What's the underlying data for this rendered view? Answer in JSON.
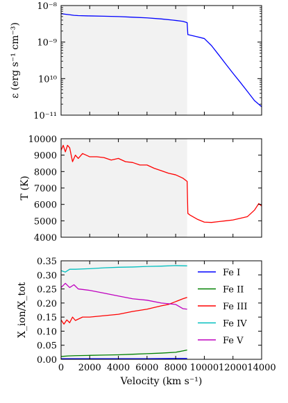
{
  "chart_data": [
    {
      "type": "line",
      "panel": "emissivity",
      "ylabel": "ε (erg s⁻¹ cm⁻³)",
      "yscale": "log",
      "xlim": [
        0,
        14000
      ],
      "ylim": [
        1e-11,
        1e-08
      ],
      "ytick_labels": [
        "10⁻⁸",
        "10⁻⁹",
        "10¹⁰",
        "10⁻¹¹"
      ],
      "shaded_region": [
        0,
        8800
      ],
      "grid": false,
      "color": "#0000ff",
      "series": [
        {
          "x": [
            0,
            300,
            600,
            900,
            1200,
            2000,
            3000,
            4000,
            5000,
            6000,
            7000,
            7800,
            8500,
            8800,
            8850,
            9500,
            10000,
            10500,
            11000,
            11500,
            12000,
            12500,
            13000,
            13500,
            14000
          ],
          "y": [
            6e-09,
            5.8e-09,
            5.6e-09,
            5.4e-09,
            5.3e-09,
            5.2e-09,
            5.1e-09,
            5e-09,
            4.8e-09,
            4.6e-09,
            4.3e-09,
            4e-09,
            3.7e-09,
            3.4e-09,
            1.6e-09,
            1.4e-09,
            1.25e-09,
            8e-10,
            4.5e-10,
            2.5e-10,
            1.4e-10,
            8e-11,
            4.5e-11,
            2.5e-11,
            1.7e-11
          ]
        }
      ]
    },
    {
      "type": "line",
      "panel": "temperature",
      "ylabel": "T (K)",
      "xlim": [
        0,
        14000
      ],
      "ylim": [
        4000,
        10000
      ],
      "yticks": [
        4000,
        5000,
        6000,
        7000,
        8000,
        9000,
        10000
      ],
      "shaded_region": [
        0,
        8800
      ],
      "grid": false,
      "color": "#ff0000",
      "series": [
        {
          "x": [
            0,
            150,
            300,
            450,
            600,
            800,
            1000,
            1200,
            1500,
            2000,
            2500,
            3000,
            3500,
            4000,
            4500,
            5000,
            5500,
            6000,
            6500,
            7000,
            7500,
            8000,
            8500,
            8800,
            8850,
            9000,
            9500,
            10000,
            10500,
            11000,
            11500,
            12000,
            12500,
            13000,
            13500,
            13800,
            14000
          ],
          "y": [
            9300,
            9600,
            9200,
            9600,
            9450,
            8600,
            9000,
            8800,
            9100,
            8900,
            8900,
            8850,
            8700,
            8800,
            8600,
            8550,
            8400,
            8400,
            8200,
            8050,
            7900,
            7800,
            7600,
            7400,
            5450,
            5350,
            5100,
            4920,
            4900,
            4950,
            5000,
            5050,
            5150,
            5250,
            5650,
            6050,
            5900
          ]
        }
      ]
    },
    {
      "type": "line",
      "panel": "ionization",
      "xlabel": "Velocity (km s⁻¹)",
      "ylabel": "X_ion/X_tot",
      "xlim": [
        0,
        14000
      ],
      "xticks": [
        0,
        2000,
        4000,
        6000,
        8000,
        10000,
        12000,
        14000
      ],
      "ylim": [
        0,
        0.35
      ],
      "yticks": [
        0.0,
        0.05,
        0.1,
        0.15,
        0.2,
        0.25,
        0.3,
        0.35
      ],
      "shaded_region": [
        0,
        8800
      ],
      "grid": false,
      "legend": "right",
      "series": [
        {
          "name": "Fe I",
          "color": "#0000ff",
          "x": [
            0,
            1000,
            2000,
            4000,
            6000,
            8000,
            8800
          ],
          "y": [
            0.002,
            0.002,
            0.002,
            0.002,
            0.002,
            0.003,
            0.003
          ]
        },
        {
          "name": "Fe II",
          "color": "#008000",
          "x": [
            0,
            500,
            1000,
            2000,
            3000,
            4000,
            5000,
            6000,
            7000,
            8000,
            8500,
            8800
          ],
          "y": [
            0.01,
            0.012,
            0.013,
            0.014,
            0.015,
            0.016,
            0.018,
            0.02,
            0.022,
            0.025,
            0.03,
            0.033
          ]
        },
        {
          "name": "Fe III",
          "color": "#ff0000",
          "x": [
            0,
            200,
            400,
            600,
            800,
            1000,
            1500,
            2000,
            3000,
            4000,
            5000,
            6000,
            7000,
            7500,
            8000,
            8500,
            8800
          ],
          "y": [
            0.14,
            0.125,
            0.14,
            0.13,
            0.15,
            0.138,
            0.15,
            0.15,
            0.155,
            0.16,
            0.17,
            0.178,
            0.19,
            0.195,
            0.205,
            0.215,
            0.22
          ]
        },
        {
          "name": "Fe IV",
          "color": "#00bfbf",
          "x": [
            0,
            300,
            600,
            1000,
            2000,
            3000,
            4000,
            5000,
            6000,
            7000,
            8000,
            8800
          ],
          "y": [
            0.315,
            0.31,
            0.32,
            0.32,
            0.322,
            0.325,
            0.327,
            0.328,
            0.33,
            0.331,
            0.333,
            0.332
          ]
        },
        {
          "name": "Fe V",
          "color": "#bf00bf",
          "x": [
            0,
            300,
            600,
            900,
            1200,
            2000,
            3000,
            4000,
            5000,
            6000,
            7000,
            8000,
            8500,
            8800
          ],
          "y": [
            0.255,
            0.27,
            0.255,
            0.265,
            0.25,
            0.245,
            0.235,
            0.225,
            0.215,
            0.21,
            0.2,
            0.195,
            0.18,
            0.178
          ]
        }
      ]
    }
  ]
}
